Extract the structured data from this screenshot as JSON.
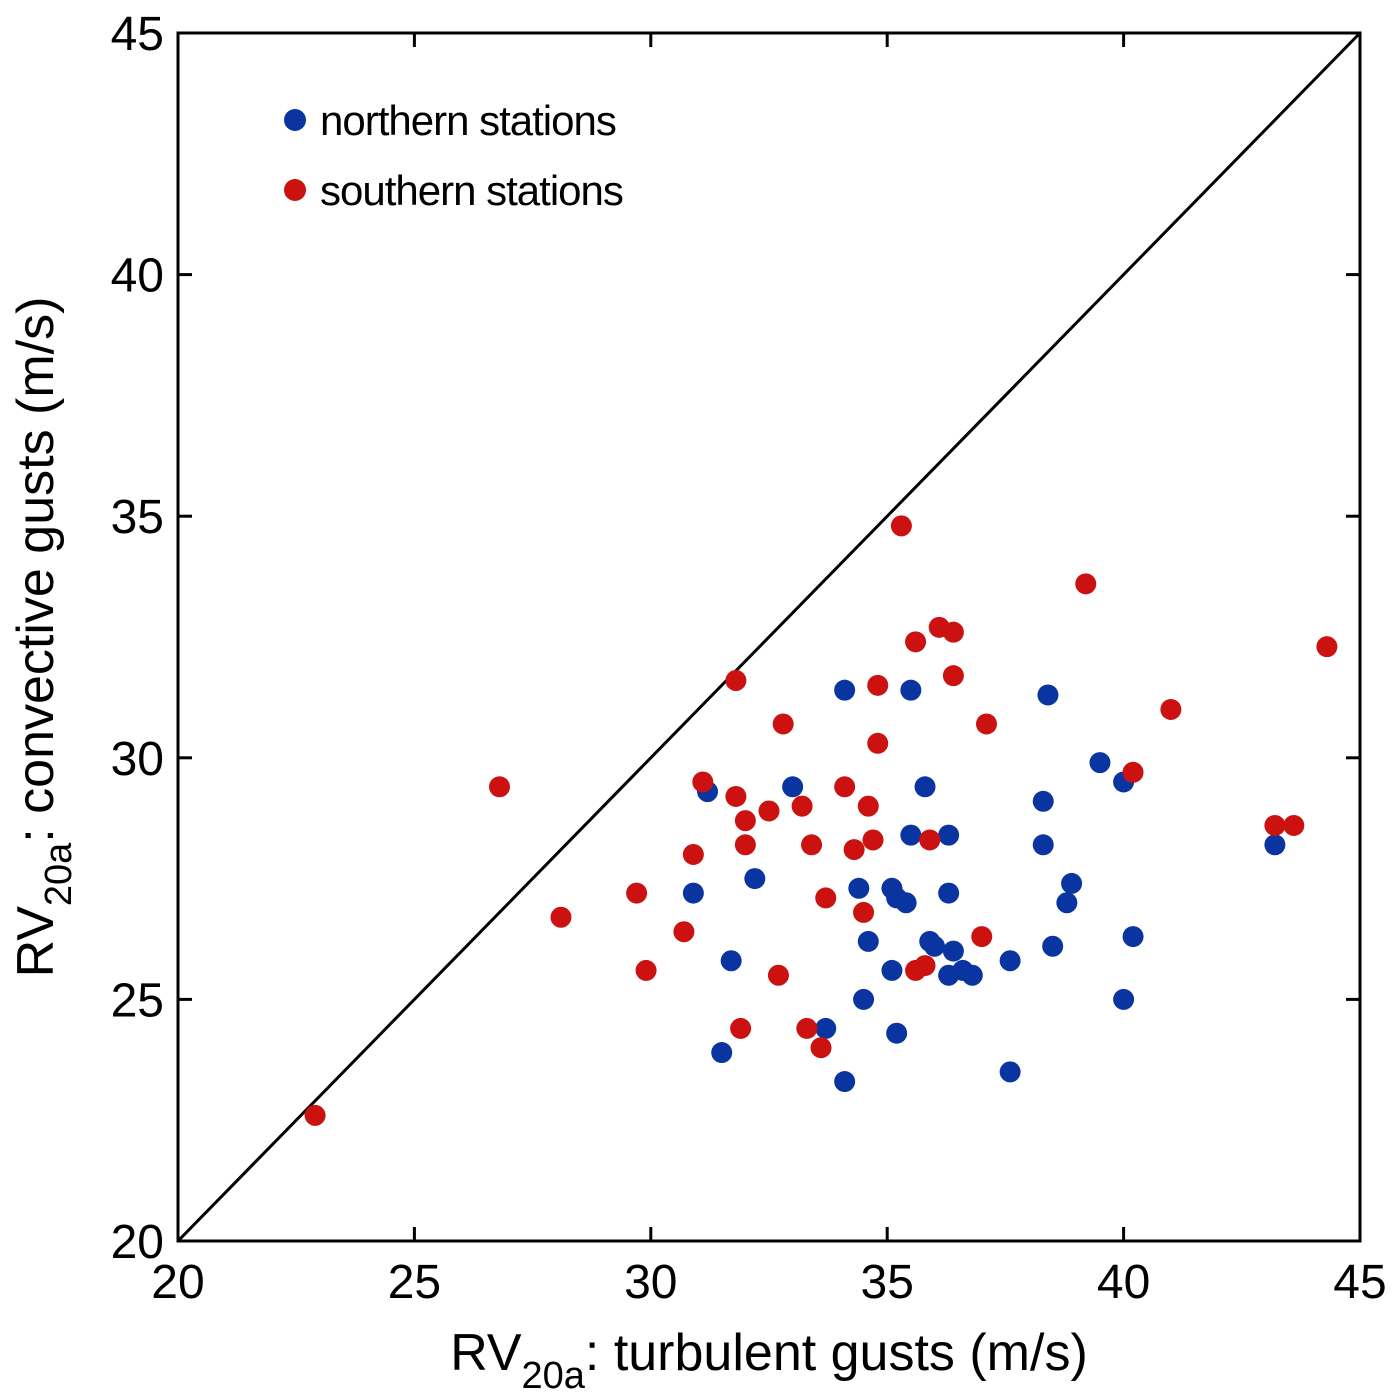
{
  "chart_data": {
    "type": "scatter",
    "title": "",
    "xlabel": {
      "main": "RV",
      "sub": "20a",
      "rest": ": turbulent gusts (m/s)"
    },
    "ylabel": {
      "main": "RV",
      "sub": "20a",
      "rest": ": convective gusts (m/s)"
    },
    "xlim": [
      20,
      45
    ],
    "ylim": [
      20,
      45
    ],
    "xticks": [
      20,
      25,
      30,
      35,
      40,
      45
    ],
    "yticks": [
      20,
      25,
      30,
      35,
      40,
      45
    ],
    "grid": false,
    "legend_position": "top-left",
    "reference_line": {
      "name": "1:1 line",
      "from": [
        20,
        20
      ],
      "to": [
        45,
        45
      ],
      "color": "#000000"
    },
    "series": [
      {
        "name": "northern stations",
        "color": "#0a35a0",
        "points": [
          [
            31.2,
            29.3
          ],
          [
            33.0,
            29.4
          ],
          [
            34.1,
            31.4
          ],
          [
            35.5,
            31.4
          ],
          [
            38.4,
            31.3
          ],
          [
            39.5,
            29.9
          ],
          [
            40.0,
            29.5
          ],
          [
            43.2,
            28.2
          ],
          [
            38.3,
            29.1
          ],
          [
            38.3,
            28.2
          ],
          [
            35.8,
            29.4
          ],
          [
            35.5,
            28.4
          ],
          [
            36.3,
            28.4
          ],
          [
            30.9,
            27.2
          ],
          [
            32.2,
            27.5
          ],
          [
            34.4,
            27.3
          ],
          [
            35.1,
            27.3
          ],
          [
            35.2,
            27.1
          ],
          [
            35.4,
            27.0
          ],
          [
            36.3,
            27.2
          ],
          [
            38.9,
            27.4
          ],
          [
            38.8,
            27.0
          ],
          [
            34.6,
            26.2
          ],
          [
            35.9,
            26.2
          ],
          [
            36.0,
            26.1
          ],
          [
            36.4,
            26.0
          ],
          [
            40.2,
            26.3
          ],
          [
            38.5,
            26.1
          ],
          [
            31.7,
            25.8
          ],
          [
            35.1,
            25.6
          ],
          [
            36.3,
            25.5
          ],
          [
            36.6,
            25.6
          ],
          [
            36.8,
            25.5
          ],
          [
            37.6,
            25.8
          ],
          [
            34.5,
            25.0
          ],
          [
            40.0,
            25.0
          ],
          [
            33.7,
            24.4
          ],
          [
            35.2,
            24.3
          ],
          [
            31.5,
            23.9
          ],
          [
            34.1,
            23.3
          ],
          [
            37.6,
            23.5
          ]
        ]
      },
      {
        "name": "southern stations",
        "color": "#cc1111",
        "points": [
          [
            22.9,
            22.6
          ],
          [
            26.8,
            29.4
          ],
          [
            28.1,
            26.7
          ],
          [
            29.7,
            27.2
          ],
          [
            29.9,
            25.6
          ],
          [
            30.7,
            26.4
          ],
          [
            30.9,
            28.0
          ],
          [
            31.1,
            29.5
          ],
          [
            31.8,
            31.6
          ],
          [
            31.8,
            29.2
          ],
          [
            32.0,
            28.7
          ],
          [
            32.0,
            28.2
          ],
          [
            31.9,
            24.4
          ],
          [
            32.5,
            28.9
          ],
          [
            32.8,
            30.7
          ],
          [
            32.7,
            25.5
          ],
          [
            33.2,
            29.0
          ],
          [
            33.4,
            28.2
          ],
          [
            33.3,
            24.4
          ],
          [
            33.7,
            27.1
          ],
          [
            33.6,
            24.0
          ],
          [
            34.1,
            29.4
          ],
          [
            34.3,
            28.1
          ],
          [
            34.6,
            29.0
          ],
          [
            34.7,
            28.3
          ],
          [
            34.5,
            26.8
          ],
          [
            34.8,
            30.3
          ],
          [
            34.8,
            31.5
          ],
          [
            35.3,
            34.8
          ],
          [
            35.6,
            32.4
          ],
          [
            36.1,
            32.7
          ],
          [
            36.4,
            32.6
          ],
          [
            36.4,
            31.7
          ],
          [
            35.9,
            28.3
          ],
          [
            35.6,
            25.6
          ],
          [
            35.8,
            25.7
          ],
          [
            37.0,
            26.3
          ],
          [
            37.1,
            30.7
          ],
          [
            39.2,
            33.6
          ],
          [
            40.2,
            29.7
          ],
          [
            41.0,
            31.0
          ],
          [
            43.2,
            28.6
          ],
          [
            43.6,
            28.6
          ],
          [
            44.3,
            32.3
          ]
        ]
      }
    ]
  }
}
